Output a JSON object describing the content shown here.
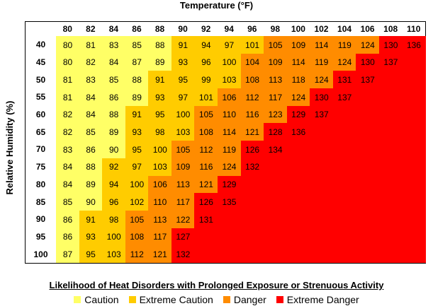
{
  "title": "Temperature (°F)",
  "y_label": "Relative Humidity (%)",
  "columns": [
    80,
    82,
    84,
    86,
    88,
    90,
    92,
    94,
    96,
    98,
    100,
    102,
    104,
    106,
    108,
    110
  ],
  "rows": [
    {
      "label": 40,
      "values": [
        80,
        81,
        83,
        85,
        88,
        91,
        94,
        97,
        101,
        105,
        109,
        114,
        119,
        124,
        130,
        136
      ],
      "levels": [
        0,
        0,
        0,
        0,
        0,
        1,
        1,
        1,
        1,
        2,
        2,
        2,
        2,
        2,
        3,
        3
      ]
    },
    {
      "label": 45,
      "values": [
        80,
        82,
        84,
        87,
        89,
        93,
        96,
        100,
        104,
        109,
        114,
        119,
        124,
        130,
        137
      ],
      "levels": [
        0,
        0,
        0,
        0,
        0,
        1,
        1,
        1,
        2,
        2,
        2,
        2,
        2,
        3,
        3
      ]
    },
    {
      "label": 50,
      "values": [
        81,
        83,
        85,
        88,
        91,
        95,
        99,
        103,
        108,
        113,
        118,
        124,
        131,
        137
      ],
      "levels": [
        0,
        0,
        0,
        0,
        1,
        1,
        1,
        1,
        2,
        2,
        2,
        2,
        3,
        3
      ]
    },
    {
      "label": 55,
      "values": [
        81,
        84,
        86,
        89,
        93,
        97,
        101,
        106,
        112,
        117,
        124,
        130,
        137
      ],
      "levels": [
        0,
        0,
        0,
        0,
        1,
        1,
        1,
        2,
        2,
        2,
        2,
        3,
        3
      ]
    },
    {
      "label": 60,
      "values": [
        82,
        84,
        88,
        91,
        95,
        100,
        105,
        110,
        116,
        123,
        129,
        137
      ],
      "levels": [
        0,
        0,
        0,
        1,
        1,
        1,
        2,
        2,
        2,
        2,
        3,
        3
      ]
    },
    {
      "label": 65,
      "values": [
        82,
        85,
        89,
        93,
        98,
        103,
        108,
        114,
        121,
        128,
        136
      ],
      "levels": [
        0,
        0,
        0,
        1,
        1,
        1,
        2,
        2,
        2,
        3,
        3
      ]
    },
    {
      "label": 70,
      "values": [
        83,
        86,
        90,
        95,
        100,
        105,
        112,
        119,
        126,
        134
      ],
      "levels": [
        0,
        0,
        0,
        1,
        1,
        2,
        2,
        2,
        3,
        3
      ]
    },
    {
      "label": 75,
      "values": [
        84,
        88,
        92,
        97,
        103,
        109,
        116,
        124,
        132
      ],
      "levels": [
        0,
        0,
        1,
        1,
        1,
        2,
        2,
        2,
        3
      ]
    },
    {
      "label": 80,
      "values": [
        84,
        89,
        94,
        100,
        106,
        113,
        121,
        129
      ],
      "levels": [
        0,
        0,
        1,
        1,
        2,
        2,
        2,
        3
      ]
    },
    {
      "label": 85,
      "values": [
        85,
        90,
        96,
        102,
        110,
        117,
        126,
        135
      ],
      "levels": [
        0,
        0,
        1,
        1,
        2,
        2,
        3,
        3
      ]
    },
    {
      "label": 90,
      "values": [
        86,
        91,
        98,
        105,
        113,
        122,
        131
      ],
      "levels": [
        0,
        1,
        1,
        2,
        2,
        2,
        3
      ]
    },
    {
      "label": 95,
      "values": [
        86,
        93,
        100,
        108,
        117,
        127
      ],
      "levels": [
        0,
        1,
        1,
        2,
        2,
        3
      ]
    },
    {
      "label": 100,
      "values": [
        87,
        95,
        103,
        112,
        121,
        132
      ],
      "levels": [
        0,
        1,
        1,
        2,
        2,
        3
      ]
    }
  ],
  "blank_level": 3,
  "legend": {
    "title": "Likelihood of Heat Disorders with Prolonged Exposure or Strenuous Activity",
    "items": [
      {
        "label": "Caution",
        "color": "#ffff66"
      },
      {
        "label": "Extreme Caution",
        "color": "#ffcc00"
      },
      {
        "label": "Danger",
        "color": "#ff8c00"
      },
      {
        "label": "Extreme Danger",
        "color": "#ff0000"
      }
    ]
  }
}
